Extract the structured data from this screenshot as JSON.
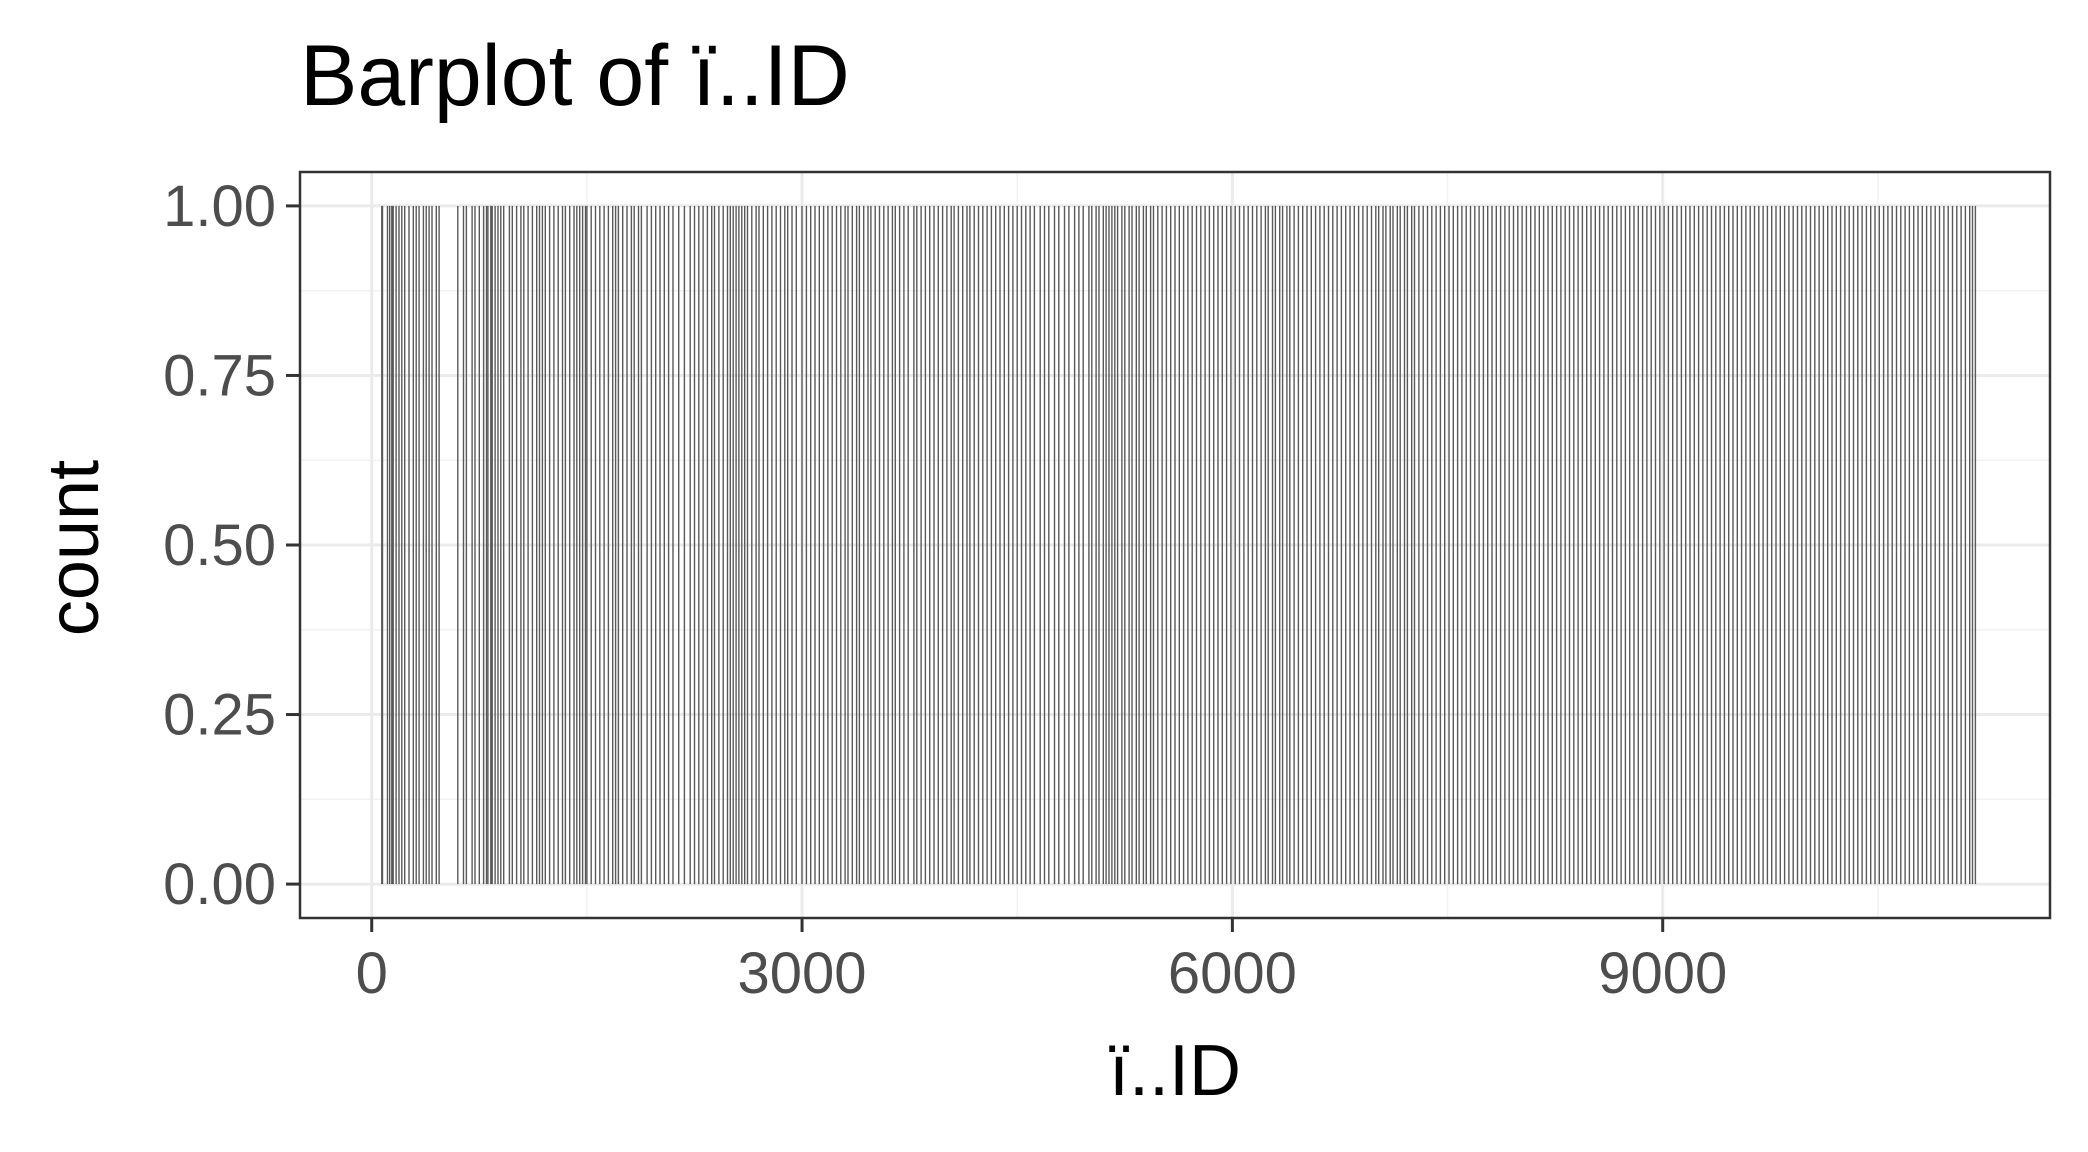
{
  "chart_data": {
    "type": "bar",
    "title": "Barplot of ï..ID",
    "xlabel": "ï..ID",
    "ylabel": "count",
    "xlim": [
      -500,
      11700
    ],
    "ylim": [
      -0.05,
      1.05
    ],
    "x_ticks": [
      0,
      3000,
      6000,
      9000
    ],
    "x_tick_labels": [
      "0",
      "3000",
      "6000",
      "9000"
    ],
    "y_ticks": [
      0.0,
      0.25,
      0.5,
      0.75,
      1.0
    ],
    "y_tick_labels": [
      "0.00",
      "0.25",
      "0.50",
      "0.75",
      "1.00"
    ],
    "grid": true,
    "bar_color": "#595959",
    "values_note_count": 1,
    "ids": [
      70,
      125,
      150,
      190,
      230,
      290,
      330,
      380,
      420,
      470,
      600,
      660,
      720,
      780,
      810,
      840,
      900,
      960,
      1010,
      1060,
      1120,
      1170,
      1210,
      1270,
      1330,
      1380,
      1430,
      1470,
      1500,
      1560,
      1620,
      1680,
      1720,
      1780,
      1830,
      1880,
      1950,
      2010,
      2070,
      2140,
      2220,
      2280,
      2340,
      2390,
      2450,
      2500,
      2540,
      2580,
      2620,
      2680,
      2730,
      2790,
      2850,
      2900,
      2960,
      3030,
      3090,
      3150,
      3210,
      3270,
      3320,
      3380,
      3430,
      3480,
      3540,
      3600,
      3650,
      3710,
      3780,
      3830,
      3890,
      3950,
      4010,
      4060,
      4120,
      4170,
      4230,
      4290,
      4350,
      4410,
      4470,
      4530,
      4590,
      4660,
      4720,
      4790,
      4860,
      4930,
      5000,
      5050,
      5100,
      5140,
      5180,
      5230,
      5280,
      5330,
      5380,
      5430,
      5480,
      5540,
      5600,
      5660,
      5720,
      5780,
      5840,
      5900,
      5960,
      6020,
      6080,
      6140,
      6200,
      6250,
      6300,
      6350,
      6400,
      6460,
      6520,
      6580,
      6640,
      6700,
      6760,
      6820,
      6880,
      6940,
      7000,
      7050,
      7100,
      7150,
      7200,
      7250,
      7300,
      7360,
      7420,
      7480,
      7540,
      7600,
      7660,
      7720,
      7780,
      7840,
      7900,
      7960,
      8020,
      8080,
      8140,
      8200,
      8260,
      8320,
      8380,
      8440,
      8500,
      8560,
      8620,
      8680,
      8740,
      8800,
      8860,
      8920,
      8980,
      9040,
      9100,
      9160,
      9220,
      9280,
      9340,
      9400,
      9460,
      9520,
      9580,
      9640,
      9700,
      9760,
      9820,
      9880,
      9940,
      10000,
      10060,
      10120,
      10180,
      10240,
      10300,
      10360,
      10420,
      10480,
      10540,
      10600,
      10660,
      10720,
      10780,
      10840,
      10900,
      10960,
      11020,
      11080,
      11140,
      11180,
      75,
      110,
      140,
      170,
      210,
      260,
      310,
      360,
      400,
      450,
      640,
      700,
      750,
      800,
      830,
      860,
      880,
      920,
      980,
      1040,
      1090,
      1150,
      1190,
      1240,
      1300,
      1350,
      1410,
      1450,
      1490,
      1530,
      1590,
      1650,
      1700,
      1750,
      1810,
      1860,
      1920,
      1980,
      2040,
      2100,
      2180,
      2250,
      2310,
      2370,
      2420,
      2480,
      2520,
      2560,
      2600,
      2650,
      2700,
      2760,
      2820,
      2880,
      2930,
      3000,
      3060,
      3120,
      3180,
      3240,
      3300,
      3350,
      3400,
      3460,
      3510,
      3570,
      3630,
      3680,
      3740,
      3800,
      3860,
      3920,
      3980,
      4040,
      4090,
      4150,
      4200,
      4260,
      4320,
      4380,
      4440,
      4500,
      4560,
      4620,
      4690,
      4760,
      4830,
      4900,
      4960,
      5020,
      5070,
      5120,
      5160,
      5200,
      5250,
      5300,
      5350,
      5400,
      5450,
      5510,
      5570,
      5630,
      5690,
      5750,
      5810,
      5870,
      5930,
      5990,
      6050,
      6110,
      6170,
      6230,
      6280,
      6330,
      6380,
      6430,
      6490,
      6550,
      6610,
      6670,
      6730,
      6790,
      6850,
      6910,
      6970,
      7020,
      7070,
      7120,
      7170,
      7220,
      7270,
      7330,
      7390,
      7450,
      7510,
      7570,
      7630,
      7690,
      7750,
      7810,
      7870,
      7930,
      7990,
      8050,
      8110,
      8170,
      8230,
      8290,
      8350,
      8410,
      8470,
      8530,
      8590,
      8650,
      8710,
      8770,
      8830,
      8890,
      8950,
      9010,
      9070,
      9130,
      9190,
      9250,
      9310,
      9370,
      9430,
      9490,
      9550,
      9610,
      9670,
      9730,
      9790,
      9850,
      9910,
      9970,
      10030,
      10090,
      10150,
      10210,
      10270,
      10330,
      10390,
      10450,
      10510,
      10570,
      10630,
      10690,
      10750,
      10810,
      10870,
      10930,
      10990,
      11050,
      11110,
      11160
    ]
  }
}
